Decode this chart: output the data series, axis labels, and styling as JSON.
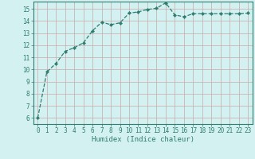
{
  "x": [
    0,
    1,
    2,
    3,
    4,
    5,
    6,
    7,
    8,
    9,
    10,
    11,
    12,
    13,
    14,
    15,
    16,
    17,
    18,
    19,
    20,
    21,
    22,
    23
  ],
  "y": [
    6.0,
    9.8,
    10.5,
    11.5,
    11.8,
    12.2,
    13.2,
    13.9,
    13.7,
    13.85,
    14.65,
    14.75,
    14.95,
    15.05,
    15.5,
    14.5,
    14.35,
    14.6,
    14.6,
    14.6,
    14.6,
    14.6,
    14.6,
    14.65
  ],
  "line_color": "#2e7d6e",
  "marker": "D",
  "marker_size": 2.2,
  "bg_color": "#d4f1f1",
  "grid_color_major": "#c8a8a8",
  "grid_color_minor": "#c8e8e8",
  "xlabel": "Humidex (Indice chaleur)",
  "ylim": [
    5.5,
    15.6
  ],
  "xlim": [
    -0.5,
    23.5
  ],
  "yticks": [
    6,
    7,
    8,
    9,
    10,
    11,
    12,
    13,
    14,
    15
  ],
  "xticks": [
    0,
    1,
    2,
    3,
    4,
    5,
    6,
    7,
    8,
    9,
    10,
    11,
    12,
    13,
    14,
    15,
    16,
    17,
    18,
    19,
    20,
    21,
    22,
    23
  ],
  "xtick_labels": [
    "0",
    "1",
    "2",
    "3",
    "4",
    "5",
    "6",
    "7",
    "8",
    "9",
    "10",
    "11",
    "12",
    "13",
    "14",
    "15",
    "16",
    "17",
    "18",
    "19",
    "20",
    "21",
    "22",
    "23"
  ],
  "axis_fontsize": 5.5,
  "xlabel_fontsize": 6.5,
  "spine_color": "#2e7d6e",
  "linewidth": 0.9
}
